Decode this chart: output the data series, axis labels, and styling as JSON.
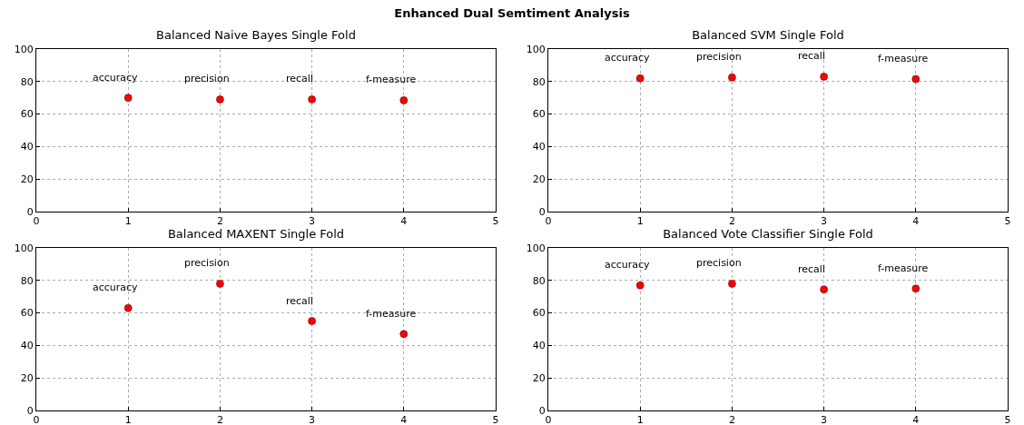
{
  "chart_data": [
    {
      "type": "scatter",
      "title": "Balanced Naive Bayes Single Fold",
      "annotations": [
        "Enhanced Dual Semtiment Analysis",
        {
          "text": "accuracy",
          "x": 1,
          "y": 70
        },
        {
          "text": "precision",
          "x": 2,
          "y": 69
        },
        {
          "text": "recall",
          "x": 3,
          "y": 69
        },
        {
          "text": "f-measure",
          "x": 4,
          "y": 68.5
        }
      ],
      "x": [
        1,
        2,
        3,
        4
      ],
      "values": [
        70,
        69,
        69,
        68.5
      ],
      "color": "#ff0000",
      "marker": "circle",
      "xlim": [
        0,
        5
      ],
      "ylim": [
        0,
        100
      ],
      "xticks": [
        0,
        1,
        2,
        3,
        4,
        5
      ],
      "yticks": [
        0,
        20,
        40,
        60,
        80,
        100
      ],
      "grid": true
    },
    {
      "type": "scatter",
      "title": "Balanced SVM Single Fold",
      "annotations": [
        {
          "text": "accuracy",
          "x": 1,
          "y": 82
        },
        {
          "text": "precision",
          "x": 2,
          "y": 82.5
        },
        {
          "text": "recall",
          "x": 3,
          "y": 83
        },
        {
          "text": "f-measure",
          "x": 4,
          "y": 81.5
        }
      ],
      "x": [
        1,
        2,
        3,
        4
      ],
      "values": [
        82,
        82.5,
        83,
        81.5
      ],
      "color": "#ff0000",
      "marker": "circle",
      "xlim": [
        0,
        5
      ],
      "ylim": [
        0,
        100
      ],
      "xticks": [
        0,
        1,
        2,
        3,
        4,
        5
      ],
      "yticks": [
        0,
        20,
        40,
        60,
        80,
        100
      ],
      "grid": true
    },
    {
      "type": "scatter",
      "title": "Balanced MAXENT Single Fold",
      "annotations": [
        {
          "text": "accuracy",
          "x": 1,
          "y": 63
        },
        {
          "text": "precision",
          "x": 2,
          "y": 78
        },
        {
          "text": "recall",
          "x": 3,
          "y": 55
        },
        {
          "text": "f-measure",
          "x": 4,
          "y": 47
        }
      ],
      "x": [
        1,
        2,
        3,
        4
      ],
      "values": [
        63,
        78,
        55,
        47
      ],
      "color": "#ff0000",
      "marker": "circle",
      "xlim": [
        0,
        5
      ],
      "ylim": [
        0,
        100
      ],
      "xticks": [
        0,
        1,
        2,
        3,
        4,
        5
      ],
      "yticks": [
        0,
        20,
        40,
        60,
        80,
        100
      ],
      "grid": true
    },
    {
      "type": "scatter",
      "title": "Balanced Vote Classifier Single Fold",
      "annotations": [
        {
          "text": "accuracy",
          "x": 1,
          "y": 77
        },
        {
          "text": "precision",
          "x": 2,
          "y": 78
        },
        {
          "text": "recall",
          "x": 3,
          "y": 74.5
        },
        {
          "text": "f-measure",
          "x": 4,
          "y": 75
        }
      ],
      "x": [
        1,
        2,
        3,
        4
      ],
      "values": [
        77,
        78,
        74.5,
        75
      ],
      "color": "#ff0000",
      "marker": "circle",
      "xlim": [
        0,
        5
      ],
      "ylim": [
        0,
        100
      ],
      "xticks": [
        0,
        1,
        2,
        3,
        4,
        5
      ],
      "yticks": [
        0,
        20,
        40,
        60,
        80,
        100
      ],
      "grid": true
    }
  ]
}
